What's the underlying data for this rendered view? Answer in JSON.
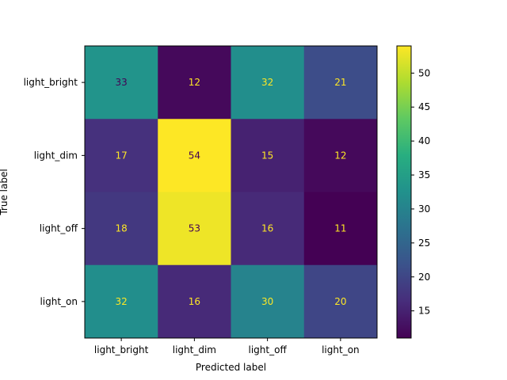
{
  "chart_data": {
    "type": "heatmap",
    "title": "",
    "xlabel": "Predicted label",
    "ylabel": "True label",
    "x_categories": [
      "light_bright",
      "light_dim",
      "light_off",
      "light_on"
    ],
    "y_categories": [
      "light_bright",
      "light_dim",
      "light_off",
      "light_on"
    ],
    "values": [
      [
        33,
        12,
        32,
        21
      ],
      [
        17,
        54,
        15,
        12
      ],
      [
        18,
        53,
        16,
        11
      ],
      [
        32,
        16,
        30,
        20
      ]
    ],
    "colormap": "viridis",
    "colorbar": {
      "range": [
        11,
        54
      ],
      "ticks": [
        15,
        20,
        25,
        30,
        35,
        40,
        45,
        50
      ]
    },
    "text_colors": {
      "dark_cell": "#fde725",
      "light_cell": "#440154"
    }
  }
}
